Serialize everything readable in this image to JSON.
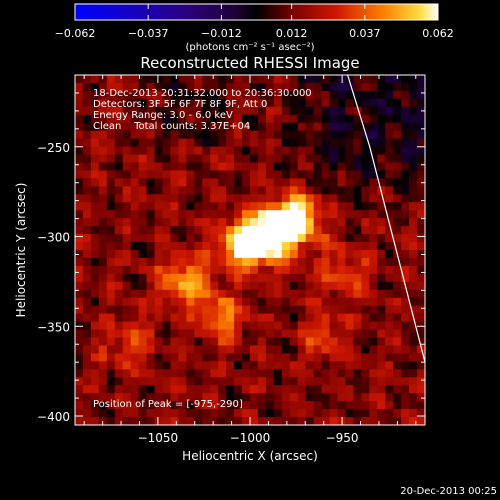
{
  "chart_data": {
    "type": "heatmap",
    "title": "Reconstructed RHESSI Image",
    "xlabel": "Heliocentric X (arcsec)",
    "ylabel": "Heliocentric Y (arcsec)",
    "xlim": [
      -1095,
      -905
    ],
    "ylim": [
      -405,
      -210
    ],
    "x_ticks": [
      -1050,
      -1000,
      -950
    ],
    "y_ticks": [
      -250,
      -300,
      -350,
      -400
    ],
    "x_tick_labels": [
      "−1050",
      "−1000",
      "−950"
    ],
    "y_tick_labels": [
      "−250",
      "−300",
      "−350",
      "−400"
    ],
    "colorbar": {
      "min": -0.062,
      "max": 0.062,
      "ticks": [
        -0.062,
        -0.037,
        -0.012,
        0.012,
        0.037,
        0.062
      ],
      "tick_labels": [
        "−0.062",
        "−0.037",
        "−0.012",
        "0.012",
        "0.037",
        "0.062"
      ],
      "units_label": "(photons cm⁻² s⁻¹ asec⁻²)"
    },
    "annotations": [
      "18-Dec-2013 20:31:32.000 to 20:36:30.000",
      "Detectors: 3F 5F 6F 7F 8F 9F, Att 0",
      "Energy Range: 3.0 - 6.0 keV",
      "Clean    Total counts: 3.37E+04"
    ],
    "peak_label": "Position of Peak = [-975,-290]",
    "peak": {
      "x": -975,
      "y": -290,
      "value": 0.062
    },
    "sources": [
      {
        "x": -975,
        "y": -290,
        "amp": 1.0,
        "sigma": 9
      },
      {
        "x": -990,
        "y": -300,
        "amp": 0.9,
        "sigma": 10
      },
      {
        "x": -1005,
        "y": -305,
        "amp": 0.75,
        "sigma": 9
      },
      {
        "x": -1035,
        "y": -325,
        "amp": 0.55,
        "sigma": 10
      },
      {
        "x": -1015,
        "y": -345,
        "amp": 0.45,
        "sigma": 9
      },
      {
        "x": -960,
        "y": -355,
        "amp": 0.35,
        "sigma": 8
      },
      {
        "x": -1065,
        "y": -360,
        "amp": 0.3,
        "sigma": 10
      },
      {
        "x": -950,
        "y": -320,
        "amp": 0.3,
        "sigma": 10
      }
    ],
    "limb_curve": [
      [
        -947,
        -210
      ],
      [
        -935,
        -250
      ],
      [
        -925,
        -290
      ],
      [
        -915,
        -330
      ],
      [
        -905,
        -370
      ]
    ],
    "footer_date": "20-Dec-2013 00:25"
  }
}
